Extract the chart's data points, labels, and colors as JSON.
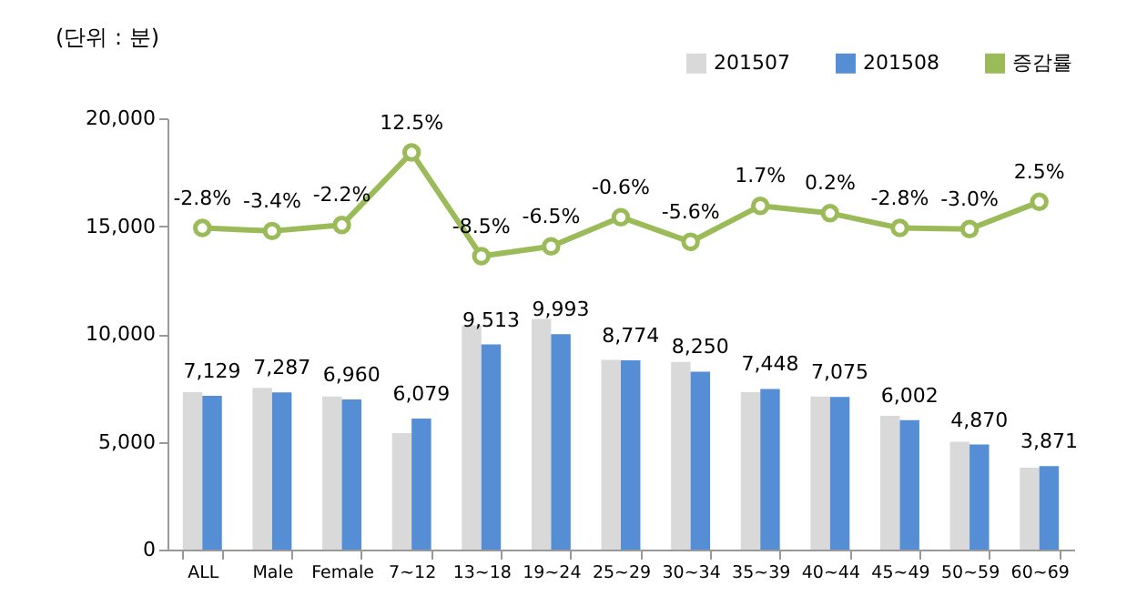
{
  "chart_data": {
    "type": "bar",
    "ylabel": "(단위 : 분)",
    "categories": [
      "ALL",
      "Male",
      "Female",
      "7~12",
      "13~18",
      "19~24",
      "25~29",
      "30~34",
      "35~39",
      "40~44",
      "45~49",
      "50~59",
      "60~69"
    ],
    "series": [
      {
        "name": "201507",
        "color": "#d9d9d9",
        "values": [
          7300,
          7500,
          7100,
          5400,
          10400,
          10700,
          8800,
          8700,
          7300,
          7100,
          6200,
          5000,
          3800
        ]
      },
      {
        "name": "201508",
        "color": "#558ed5",
        "values": [
          7129,
          7287,
          6960,
          6079,
          9513,
          9993,
          8774,
          8250,
          7448,
          7075,
          6002,
          4870,
          3871
        ],
        "value_labels": [
          "7,129",
          "7,287",
          "6,960",
          "6,079",
          "9,513",
          "9,993",
          "8,774",
          "8,250",
          "7,448",
          "7,075",
          "6,002",
          "4,870",
          "3,871"
        ]
      },
      {
        "name": "증감률",
        "type": "line",
        "axis": "y2",
        "color": "#9bbb59",
        "marker": "circle",
        "values": [
          -2.8,
          -3.4,
          -2.2,
          12.5,
          -8.5,
          -6.5,
          -0.6,
          -5.6,
          1.7,
          0.2,
          -2.8,
          -3.0,
          2.5
        ],
        "value_labels": [
          "-2.8%",
          "-3.4%",
          "-2.2%",
          "12.5%",
          "-8.5%",
          "-6.5%",
          "-0.6%",
          "-5.6%",
          "1.7%",
          "0.2%",
          "-2.8%",
          "-3.0%",
          "2.5%"
        ]
      }
    ],
    "ylim": [
      0,
      20000
    ],
    "yticks": [
      {
        "value": 0,
        "label": "0"
      },
      {
        "value": 5000,
        "label": "5,000"
      },
      {
        "value": 10000,
        "label": "10,000"
      },
      {
        "value": 15000,
        "label": "15,000"
      },
      {
        "value": 20000,
        "label": "20,000"
      }
    ],
    "grid": false,
    "legend": "top right"
  }
}
